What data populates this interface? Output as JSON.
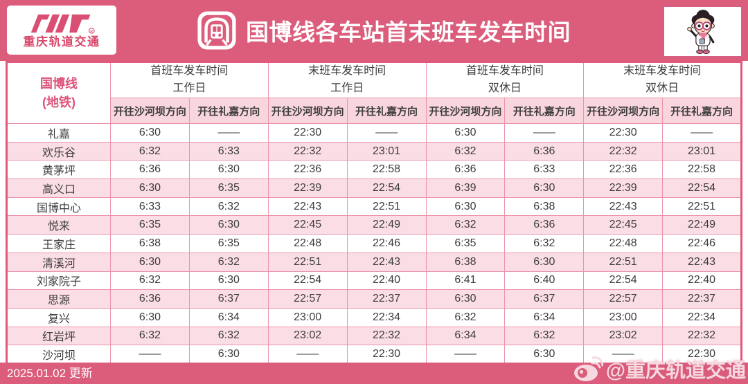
{
  "colors": {
    "header_bg": "#db5c7b",
    "subheader_pink": "#f9d6de",
    "row_alt_pink": "#fbdee5",
    "border_pink": "#ec93a9",
    "outer_border_pink": "#e0587b",
    "brand_pink": "#d8496b",
    "text_dark": "#3c3c3c",
    "watermark_pink": "#f6d9e0"
  },
  "header": {
    "brand_text": "重庆轨道交通",
    "registered_mark": "®",
    "title": "国博线各车站首末班车发车时间"
  },
  "table": {
    "line_label": {
      "line1": "国博线",
      "line2": "(地铁)"
    },
    "groups": [
      {
        "line1": "首班车发车时间",
        "line2": "工作日"
      },
      {
        "line1": "末班车发车时间",
        "line2": "工作日"
      },
      {
        "line1": "首班车发车时间",
        "line2": "双休日"
      },
      {
        "line1": "末班车发车时间",
        "line2": "双休日"
      }
    ],
    "direction_headers": [
      "开往沙河坝方向",
      "开往礼嘉方向"
    ],
    "rows": [
      {
        "station": "礼嘉",
        "times": [
          "6:30",
          "——",
          "22:30",
          "——",
          "6:30",
          "——",
          "22:30",
          "——"
        ]
      },
      {
        "station": "欢乐谷",
        "times": [
          "6:32",
          "6:33",
          "22:32",
          "23:01",
          "6:32",
          "6:36",
          "22:32",
          "23:01"
        ]
      },
      {
        "station": "黄茅坪",
        "times": [
          "6:36",
          "6:30",
          "22:36",
          "22:58",
          "6:36",
          "6:33",
          "22:36",
          "22:58"
        ]
      },
      {
        "station": "高义口",
        "times": [
          "6:30",
          "6:35",
          "22:39",
          "22:54",
          "6:39",
          "6:30",
          "22:39",
          "22:54"
        ]
      },
      {
        "station": "国博中心",
        "times": [
          "6:33",
          "6:32",
          "22:43",
          "22:51",
          "6:30",
          "6:38",
          "22:43",
          "22:51"
        ]
      },
      {
        "station": "悦来",
        "times": [
          "6:35",
          "6:30",
          "22:45",
          "22:49",
          "6:32",
          "6:36",
          "22:45",
          "22:49"
        ]
      },
      {
        "station": "王家庄",
        "times": [
          "6:38",
          "6:35",
          "22:48",
          "22:46",
          "6:35",
          "6:32",
          "22:48",
          "22:46"
        ]
      },
      {
        "station": "清溪河",
        "times": [
          "6:30",
          "6:32",
          "22:51",
          "22:43",
          "6:38",
          "6:30",
          "22:51",
          "22:43"
        ]
      },
      {
        "station": "刘家院子",
        "times": [
          "6:32",
          "6:30",
          "22:54",
          "22:40",
          "6:41",
          "6:40",
          "22:54",
          "22:40"
        ]
      },
      {
        "station": "思源",
        "times": [
          "6:36",
          "6:37",
          "22:57",
          "22:37",
          "6:30",
          "6:37",
          "22:57",
          "22:37"
        ]
      },
      {
        "station": "复兴",
        "times": [
          "6:30",
          "6:34",
          "23:00",
          "22:34",
          "6:32",
          "6:34",
          "23:00",
          "22:34"
        ]
      },
      {
        "station": "红岩坪",
        "times": [
          "6:32",
          "6:32",
          "23:02",
          "22:32",
          "6:34",
          "6:32",
          "23:02",
          "22:32"
        ]
      },
      {
        "station": "沙河坝",
        "times": [
          "——",
          "6:30",
          "——",
          "22:30",
          "——",
          "6:30",
          "——",
          "22:30"
        ]
      }
    ]
  },
  "footer": {
    "update_text": "2025.01.02 更新",
    "watermark_handle": "@重庆轨道交通"
  }
}
